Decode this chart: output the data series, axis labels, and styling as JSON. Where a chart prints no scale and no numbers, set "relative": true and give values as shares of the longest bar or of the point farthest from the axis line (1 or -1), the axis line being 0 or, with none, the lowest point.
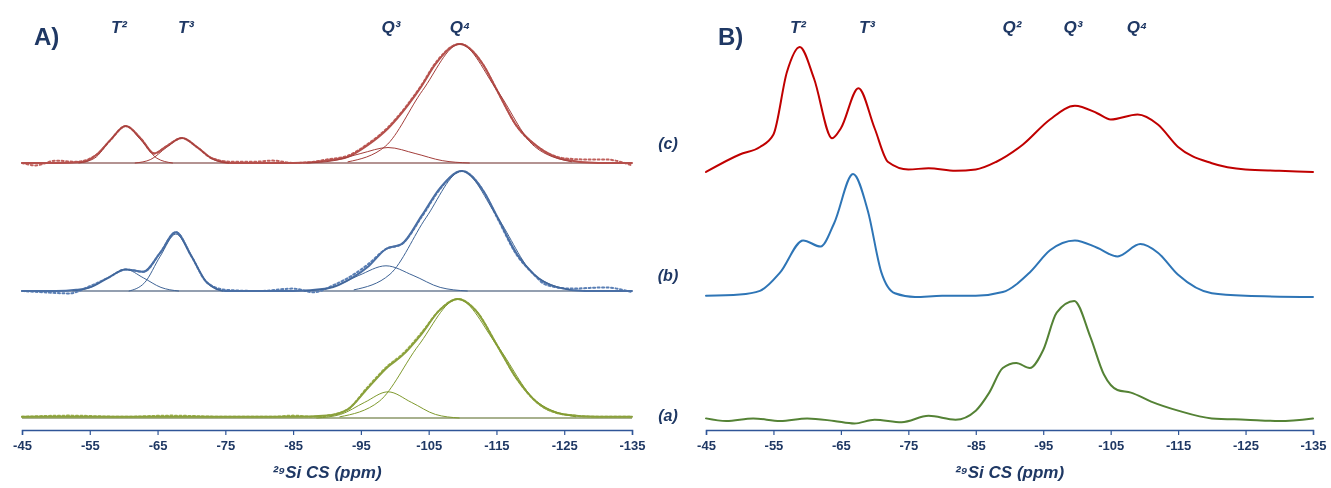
{
  "chart_data": [
    {
      "type": "line",
      "relative": true,
      "title": "A)",
      "xlim": [
        -45,
        -135
      ],
      "tick_labels": false,
      "annotations": [
        "T²",
        "T³",
        "Q³",
        "Q⁴"
      ],
      "series": [
        {
          "color": "#c0605c",
          "line_style": "dotted",
          "x": [
            -45,
            -47,
            -50,
            -53,
            -56,
            -58,
            -60.3,
            -62.6,
            -64.5,
            -66.3,
            -68.6,
            -70.9,
            -73,
            -76,
            -79,
            -82,
            -85,
            -88,
            -90,
            -93,
            -96,
            -99,
            -102,
            -104,
            -106,
            -109.6,
            -113,
            -115,
            -118,
            -121,
            -125,
            -128,
            -131,
            -135
          ],
          "values": [
            0,
            -0.02,
            0.02,
            0.01,
            0.07,
            0.19,
            0.31,
            0.2,
            0.08,
            0.14,
            0.21,
            0.13,
            0.04,
            0.01,
            0.01,
            0.02,
            0,
            0.01,
            0.03,
            0.06,
            0.16,
            0.3,
            0.5,
            0.66,
            0.84,
            1,
            0.83,
            0.62,
            0.31,
            0.14,
            0.04,
            0.03,
            0.03,
            -0.02
          ]
        },
        {
          "color": "#b5504c",
          "line_style": "solid",
          "x": [
            -45,
            -50,
            -54,
            -56,
            -58,
            -60.3,
            -62.6,
            -64.5,
            -66.3,
            -68.6,
            -70.9,
            -73,
            -76,
            -80,
            -85,
            -90,
            -93,
            -96,
            -99,
            -102,
            -104,
            -106,
            -109.6,
            -113,
            -115,
            -118,
            -121,
            -125,
            -130,
            -135
          ],
          "values": [
            0,
            0,
            0.01,
            0.07,
            0.19,
            0.31,
            0.2,
            0.08,
            0.14,
            0.21,
            0.13,
            0.04,
            0,
            0,
            0,
            0.02,
            0.05,
            0.15,
            0.29,
            0.49,
            0.65,
            0.83,
            1,
            0.83,
            0.62,
            0.31,
            0.14,
            0.03,
            0,
            0
          ]
        },
        {
          "color": "#a33d3a",
          "line_style": "solid",
          "x": [
            -53.4,
            -55.7,
            -58,
            -60.3,
            -62.6,
            -64.9,
            -67.2
          ],
          "values": [
            0,
            0.04,
            0.19,
            0.31,
            0.19,
            0.04,
            0
          ]
        },
        {
          "color": "#a33d3a",
          "line_style": "solid",
          "x": [
            -61.7,
            -64,
            -66.3,
            -68.6,
            -70.9,
            -73.2,
            -75.5
          ],
          "values": [
            0,
            0.03,
            0.13,
            0.21,
            0.13,
            0.03,
            0
          ]
        },
        {
          "color": "#a33d3a",
          "line_style": "solid",
          "x": [
            -87,
            -91,
            -95,
            -99,
            -103,
            -107,
            -111
          ],
          "values": [
            0,
            0.02,
            0.08,
            0.13,
            0.08,
            0.02,
            0
          ]
        },
        {
          "color": "#a33d3a",
          "line_style": "solid",
          "x": [
            -93.1,
            -98.6,
            -104.1,
            -109.6,
            -115.1,
            -120.6,
            -126.1
          ],
          "values": [
            0.01,
            0.14,
            0.61,
            1,
            0.61,
            0.14,
            0.01
          ]
        }
      ]
    },
    {
      "type": "line",
      "relative": true,
      "xlim": [
        -45,
        -135
      ],
      "tick_labels": false,
      "series": [
        {
          "color": "#5a7fb5",
          "line_style": "dotted",
          "x": [
            -45,
            -48,
            -52,
            -55,
            -57.7,
            -60.3,
            -62.9,
            -65.4,
            -67.7,
            -70,
            -72.3,
            -75,
            -80,
            -85,
            -88,
            -91,
            -94,
            -96,
            -98.7,
            -101,
            -104,
            -106.7,
            -109.9,
            -113,
            -115.2,
            -118,
            -120.5,
            -122,
            -124,
            -126,
            -131,
            -135
          ],
          "values": [
            0,
            -0.01,
            -0.02,
            0.04,
            0.11,
            0.18,
            0.16,
            0.32,
            0.49,
            0.29,
            0.07,
            0.01,
            0,
            0.02,
            -0.01,
            0.05,
            0.14,
            0.22,
            0.35,
            0.39,
            0.62,
            0.85,
            1,
            0.84,
            0.6,
            0.3,
            0.14,
            0.06,
            0.03,
            0.02,
            0.03,
            -0.01
          ]
        },
        {
          "color": "#4a6fa5",
          "line_style": "solid",
          "x": [
            -45,
            -50,
            -53,
            -55,
            -57.7,
            -60.3,
            -62.9,
            -65.4,
            -67.7,
            -70,
            -72.3,
            -75,
            -80,
            -85,
            -90,
            -94,
            -96,
            -98.7,
            -101,
            -104,
            -106.7,
            -109.9,
            -113,
            -115.2,
            -118,
            -120.5,
            -124,
            -128,
            -135
          ],
          "values": [
            0,
            0,
            0.01,
            0.03,
            0.11,
            0.18,
            0.16,
            0.32,
            0.49,
            0.29,
            0.07,
            0,
            0,
            0,
            0.02,
            0.12,
            0.2,
            0.35,
            0.39,
            0.63,
            0.86,
            1,
            0.84,
            0.61,
            0.31,
            0.14,
            0.03,
            0,
            0
          ]
        },
        {
          "color": "#3f6496",
          "line_style": "solid",
          "x": [
            -52.5,
            -55.1,
            -57.7,
            -60.3,
            -62.9,
            -65.5,
            -68.1
          ],
          "values": [
            0,
            0.03,
            0.11,
            0.18,
            0.11,
            0.03,
            0
          ]
        },
        {
          "color": "#3f6496",
          "line_style": "solid",
          "x": [
            -60.8,
            -63.1,
            -65.4,
            -67.7,
            -70,
            -72.3,
            -74.6
          ],
          "values": [
            0,
            0.07,
            0.29,
            0.475,
            0.29,
            0.07,
            0
          ]
        },
        {
          "color": "#3f6496",
          "line_style": "solid",
          "x": [
            -86.7,
            -90.7,
            -94.7,
            -98.7,
            -102.7,
            -106.7,
            -110.7
          ],
          "values": [
            0,
            0.03,
            0.13,
            0.21,
            0.13,
            0.03,
            0
          ]
        },
        {
          "color": "#3f6496",
          "line_style": "solid",
          "x": [
            -94,
            -99.3,
            -104.6,
            -109.9,
            -115.2,
            -120.5,
            -125.8
          ],
          "values": [
            0.01,
            0.14,
            0.61,
            1,
            0.61,
            0.14,
            0.01
          ]
        }
      ]
    },
    {
      "type": "line",
      "relative": true,
      "xlim": [
        -45,
        -135
      ],
      "xticks": [
        -45,
        -55,
        -65,
        -75,
        -85,
        -95,
        -105,
        -115,
        -125,
        -135
      ],
      "tick_labels": "x",
      "xlabel": "²⁹Si CS  (ppm)",
      "series": [
        {
          "color": "#9bb04a",
          "line_style": "dotted",
          "x": [
            -45,
            -52,
            -60,
            -67,
            -75,
            -82,
            -85,
            -88,
            -90,
            -93,
            -96,
            -99,
            -101,
            -104,
            -106.5,
            -109.3,
            -112,
            -115.1,
            -118,
            -121,
            -125,
            -130,
            -135
          ],
          "values": [
            0.01,
            0.02,
            0.01,
            0.02,
            0.01,
            0.01,
            0.02,
            0.01,
            0.02,
            0.07,
            0.26,
            0.44,
            0.53,
            0.72,
            0.9,
            1,
            0.9,
            0.61,
            0.33,
            0.13,
            0.03,
            0.01,
            0.01
          ]
        },
        {
          "color": "#8aa03c",
          "line_style": "solid",
          "x": [
            -45,
            -60,
            -75,
            -85,
            -90,
            -93,
            -96,
            -99,
            -101,
            -104,
            -106.5,
            -109.3,
            -112,
            -115.1,
            -118,
            -121,
            -125,
            -130,
            -135
          ],
          "values": [
            0.01,
            0.01,
            0.01,
            0.01,
            0.02,
            0.07,
            0.25,
            0.43,
            0.52,
            0.71,
            0.9,
            1,
            0.9,
            0.61,
            0.33,
            0.13,
            0.03,
            0.01,
            0.01
          ]
        },
        {
          "color": "#7f9a2e",
          "line_style": "solid",
          "x": [
            -88.5,
            -92,
            -95.5,
            -99,
            -102.5,
            -106,
            -109.5
          ],
          "values": [
            0,
            0.03,
            0.13,
            0.22,
            0.13,
            0.03,
            0
          ]
        },
        {
          "color": "#7f9a2e",
          "line_style": "solid",
          "x": [
            -91.9,
            -97.7,
            -103.5,
            -109.3,
            -115.1,
            -120.9,
            -126.7
          ],
          "values": [
            0.01,
            0.14,
            0.61,
            1,
            0.61,
            0.14,
            0.01
          ]
        }
      ]
    },
    {
      "type": "line",
      "relative": true,
      "title": "B)",
      "xlim": [
        -45,
        -135
      ],
      "tick_labels": false,
      "annotations": [
        "(c)",
        "T²",
        "T³",
        "Q²",
        "Q³",
        "Q⁴"
      ],
      "series": [
        {
          "color": "#c00000",
          "x": [
            -45,
            -50,
            -53,
            -55,
            -57,
            -58.9,
            -61,
            -63.7,
            -65,
            -67.6,
            -70,
            -72,
            -75,
            -78,
            -82,
            -85,
            -88,
            -92,
            -96,
            -99.7,
            -103,
            -105,
            -109,
            -112,
            -115,
            -120,
            -125,
            -130,
            -135
          ],
          "values": [
            0,
            0.14,
            0.2,
            0.3,
            0.8,
            1,
            0.75,
            0.27,
            0.35,
            0.67,
            0.35,
            0.08,
            0.02,
            0.03,
            0.01,
            0.02,
            0.08,
            0.22,
            0.42,
            0.53,
            0.47,
            0.42,
            0.46,
            0.38,
            0.2,
            0.07,
            0.02,
            0.01,
            0
          ]
        }
      ]
    },
    {
      "type": "line",
      "relative": true,
      "xlim": [
        -45,
        -135
      ],
      "tick_labels": false,
      "annotations": [
        "(b)"
      ],
      "series": [
        {
          "color": "#2e75b6",
          "x": [
            -45,
            -50,
            -53,
            -56,
            -59.4,
            -62,
            -64,
            -66.8,
            -69,
            -71,
            -73,
            -76,
            -80,
            -85,
            -89,
            -93,
            -96,
            -99.7,
            -103,
            -106,
            -109.4,
            -112,
            -115,
            -120,
            -125,
            -135
          ],
          "values": [
            0.01,
            0.02,
            0.05,
            0.2,
            0.46,
            0.41,
            0.6,
            1,
            0.7,
            0.2,
            0.03,
            0,
            0.01,
            0.01,
            0.04,
            0.2,
            0.38,
            0.46,
            0.4,
            0.33,
            0.43,
            0.36,
            0.18,
            0.03,
            0.01,
            0
          ]
        }
      ]
    },
    {
      "type": "line",
      "relative": true,
      "xlim": [
        -45,
        -135
      ],
      "xticks": [
        -45,
        -55,
        -65,
        -75,
        -85,
        -95,
        -105,
        -115,
        -125,
        -135
      ],
      "tick_labels": "x",
      "xlabel": "²⁹Si CS  (ppm)",
      "annotations": [
        "(a)"
      ],
      "series": [
        {
          "color": "#548235",
          "x": [
            -45,
            -48,
            -52,
            -56,
            -60,
            -64,
            -67,
            -70,
            -74,
            -78,
            -82,
            -85,
            -87,
            -89,
            -91,
            -93,
            -95,
            -97,
            -99.6,
            -102,
            -104,
            -106,
            -108,
            -111,
            -115,
            -120,
            -125,
            -130,
            -135
          ],
          "values": [
            0.09,
            0.07,
            0.09,
            0.07,
            0.09,
            0.07,
            0.05,
            0.08,
            0.06,
            0.11,
            0.08,
            0.15,
            0.29,
            0.48,
            0.52,
            0.48,
            0.62,
            0.91,
            1,
            0.72,
            0.43,
            0.31,
            0.29,
            0.22,
            0.15,
            0.09,
            0.08,
            0.07,
            0.09
          ]
        }
      ]
    }
  ]
}
